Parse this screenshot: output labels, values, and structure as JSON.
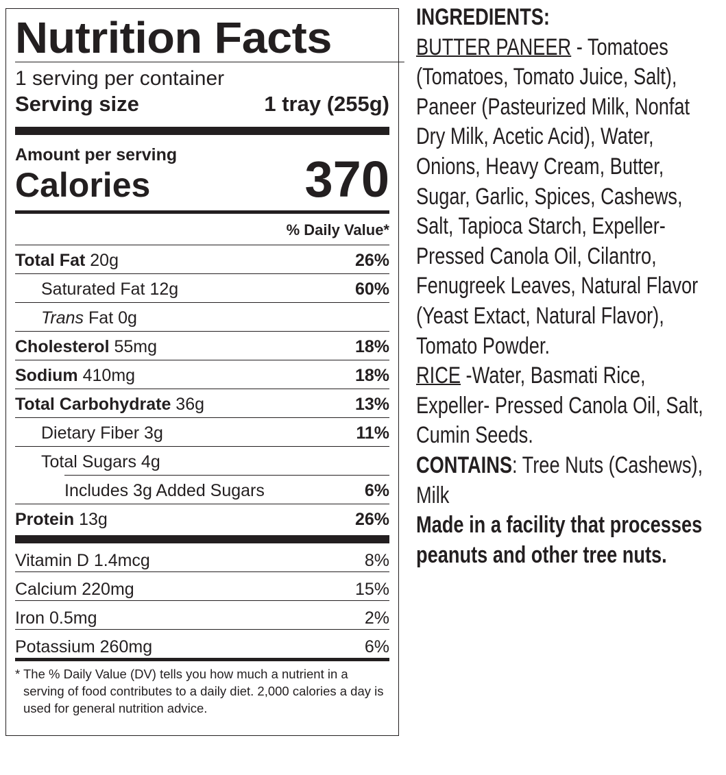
{
  "nutrition": {
    "title": "Nutrition Facts",
    "servings": "1 serving per container",
    "serving_size_label": "Serving size",
    "serving_size": "1 tray (255g)",
    "amount_per_serving": "Amount per serving",
    "calories_label": "Calories",
    "calories": 370,
    "dv_header": "% Daily Value*",
    "rows": [
      {
        "name": "Total Fat",
        "amount": "20g",
        "dv": "26%"
      },
      {
        "name": "Saturated Fat",
        "amount": "12g",
        "dv": "60%"
      },
      {
        "name": "Trans",
        "amount": "Fat 0g"
      },
      {
        "name": "Cholesterol",
        "amount": "55mg",
        "dv": "18%"
      },
      {
        "name": "Sodium",
        "amount": "410mg",
        "dv": "18%"
      },
      {
        "name": "Total Carbohydrate",
        "amount": "36g",
        "dv": "13%"
      },
      {
        "name": "Dietary Fiber",
        "amount": "3g",
        "dv": "11%"
      },
      {
        "name": "Total Sugars",
        "amount": "4g"
      },
      {
        "name": "Includes 3g Added Sugars",
        "dv": "6%"
      },
      {
        "name": "Protein",
        "amount": "13g",
        "dv": "26%"
      }
    ],
    "vitamins": [
      {
        "name": "Vitamin D 1.4mcg",
        "dv": "8%"
      },
      {
        "name": "Calcium 220mg",
        "dv": "15%"
      },
      {
        "name": "Iron 0.5mg",
        "dv": "2%"
      },
      {
        "name": "Potassium 260mg",
        "dv": "6%"
      }
    ],
    "footnote_mark": "*",
    "footnote": "The % Daily Value (DV) tells you how much a nutrient in a serving of food contributes to a daily diet. 2,000 calories a day is used for general nutrition advice."
  },
  "ingredients": {
    "heading": "INGREDIENTS:",
    "sections": [
      {
        "name": "BUTTER PANEER",
        "text": "- Tomatoes (Tomatoes, Tomato Juice, Salt), Paneer (Pasteurized Milk, Nonfat Dry Milk, Acetic Acid), Water, Onions, Heavy Cream, Butter, Sugar, Garlic, Spices, Cashews, Salt, Tapioca Starch, Expeller-Pressed Canola Oil, Cilantro, Fenugreek Leaves, Natural Flavor (Yeast Extact, Natural Flavor), Tomato Powder."
      },
      {
        "name": "RICE",
        "text": "-Water, Basmati Rice, Expeller- Pressed Canola Oil, Salt, Cumin Seeds."
      }
    ],
    "contains_label": "CONTAINS",
    "contains": ": Tree Nuts (Cashews), Milk",
    "facility": "Made in a facility that processes peanuts and other tree nuts."
  }
}
